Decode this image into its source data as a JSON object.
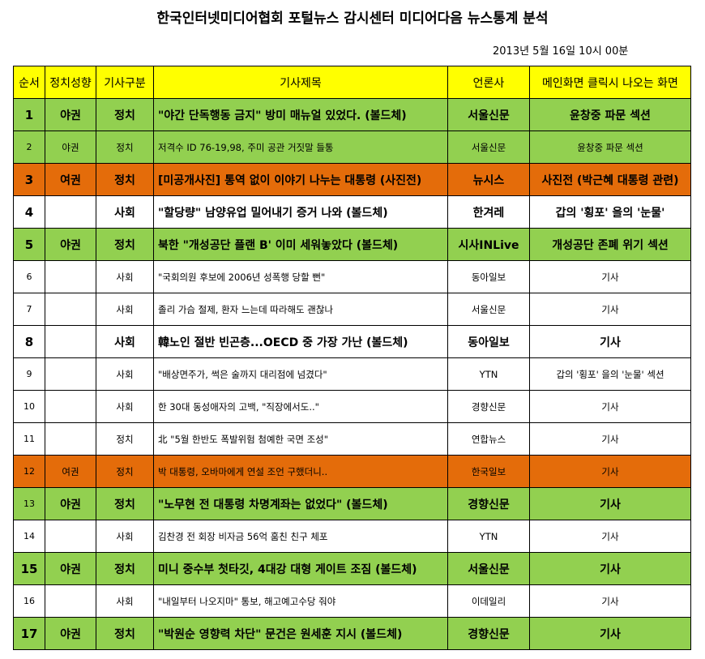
{
  "title": "한국인터넷미디어협회 포털뉴스 감시센터 미디어다음 뉴스통계 분석",
  "timestamp": "2013년 5월 16일 10시 00분",
  "headers": [
    "순서",
    "정치성향",
    "기사구분",
    "기사제목",
    "언론사",
    "메인화면 클릭시 나오는 화면"
  ],
  "colors": {
    "header": "#ffff00",
    "green": "#92d050",
    "orange": "#e46c0a",
    "white": "#ffffff"
  },
  "rows": [
    {
      "no": "1",
      "lean": "야권",
      "cat": "정치",
      "title": "\"야간 단독행동 금지\" 방미 매뉴얼 있었다. (볼드체)",
      "outlet": "서울신문",
      "screen": "윤창중 파문 섹션",
      "color": "green",
      "bold": true
    },
    {
      "no": "2",
      "lean": "야권",
      "cat": "정치",
      "title": "저격수 ID  76-19,98, 주미 공관 거짓말 들통",
      "outlet": "서울신문",
      "screen": "윤창중 파문 섹션",
      "color": "green",
      "bold": false
    },
    {
      "no": "3",
      "lean": "여권",
      "cat": "정치",
      "title": "[미공개사진] 통역 없이 이야기 나누는 대통령 (사진전)",
      "outlet": "뉴시스",
      "screen": "사진전 (박근혜 대통령 관련)",
      "color": "orange",
      "bold": true
    },
    {
      "no": "4",
      "lean": "",
      "cat": "사회",
      "title": "\"할당량\" 남양유업 밀어내기 증거 나와 (볼드체)",
      "outlet": "한겨레",
      "screen": "갑의 '횡포' 을의 '눈물'",
      "color": "white",
      "bold": true
    },
    {
      "no": "5",
      "lean": "야권",
      "cat": "정치",
      "title": "북한 \"개성공단 플랜 B' 이미 세워놓았다 (볼드체)",
      "outlet": "시사INLive",
      "screen": "개성공단 존폐 위기 섹션",
      "color": "green",
      "bold": true
    },
    {
      "no": "6",
      "lean": "",
      "cat": "사회",
      "title": "\"국회의원 후보에 2006년 성폭행 당할 뻔\"",
      "outlet": "동아일보",
      "screen": "기사",
      "color": "white",
      "bold": false
    },
    {
      "no": "7",
      "lean": "",
      "cat": "사회",
      "title": "졸리 가슴 절제, 환자 느는데 따라해도 괜찮나",
      "outlet": "서울신문",
      "screen": "기사",
      "color": "white",
      "bold": false
    },
    {
      "no": "8",
      "lean": "",
      "cat": "사회",
      "title": "韓노인 절반 빈곤층...OECD 중 가장 가난 (볼드체)",
      "outlet": "동아일보",
      "screen": "기사",
      "color": "white",
      "bold": true
    },
    {
      "no": "9",
      "lean": "",
      "cat": "사회",
      "title": "\"배상면주가, 썩은 술까지 대리점에 넘겼다\"",
      "outlet": "YTN",
      "screen": "갑의 '횡포' 을의 '눈물' 섹션",
      "color": "white",
      "bold": false
    },
    {
      "no": "10",
      "lean": "",
      "cat": "사회",
      "title": "한 30대 동성애자의 고백, \"직장에서도..\"",
      "outlet": "경향신문",
      "screen": "기사",
      "color": "white",
      "bold": false
    },
    {
      "no": "11",
      "lean": "",
      "cat": "정치",
      "title": "北 \"5월 한반도 폭발위험 첨예한 국면 조성\"",
      "outlet": "연합뉴스",
      "screen": "기사",
      "color": "white",
      "bold": false
    },
    {
      "no": "12",
      "lean": "여권",
      "cat": "정치",
      "title": "박 대통령, 오바마에게 연설 조언 구했더니..",
      "outlet": "한국일보",
      "screen": "기사",
      "color": "orange",
      "bold": false
    },
    {
      "no": "13",
      "lean": "야권",
      "cat": "정치",
      "title": "\"노무현 전 대통령 차명계좌는 없었다\" (볼드체)",
      "outlet": "경향신문",
      "screen": "기사",
      "color": "green",
      "bold": true,
      "small_no": true
    },
    {
      "no": "14",
      "lean": "",
      "cat": "사회",
      "title": "김찬경 전 회장 비자금 56억 훔친 친구 체포",
      "outlet": "YTN",
      "screen": "기사",
      "color": "white",
      "bold": false
    },
    {
      "no": "15",
      "lean": "야권",
      "cat": "정치",
      "title": "미니 중수부 첫타깃, 4대강 대형 게이트 조짐 (볼드체)",
      "outlet": "서울신문",
      "screen": "기사",
      "color": "green",
      "bold": true
    },
    {
      "no": "16",
      "lean": "",
      "cat": "사회",
      "title": "\"내일부터 나오지마\" 통보, 해고예고수당 줘야",
      "outlet": "이데일리",
      "screen": "기사",
      "color": "white",
      "bold": false
    },
    {
      "no": "17",
      "lean": "야권",
      "cat": "정치",
      "title": "\"박원순 영향력 차단\" 문건은 원세훈 지시 (볼드체)",
      "outlet": "경향신문",
      "screen": "기사",
      "color": "green",
      "bold": true
    }
  ]
}
